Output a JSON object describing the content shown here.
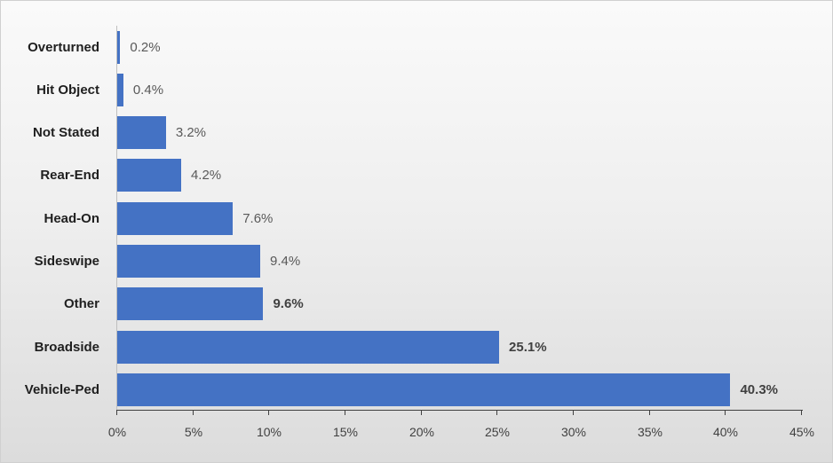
{
  "chart_data": {
    "type": "bar",
    "orientation": "horizontal",
    "title": "",
    "xlabel": "",
    "ylabel": "",
    "categories": [
      "Overturned",
      "Hit Object",
      "Not Stated",
      "Rear-End",
      "Head-On",
      "Sideswipe",
      "Other",
      "Broadside",
      "Vehicle-Ped"
    ],
    "values": [
      0.2,
      0.4,
      3.2,
      4.2,
      7.6,
      9.4,
      9.6,
      25.1,
      40.3
    ],
    "value_labels": [
      "0.2%",
      "0.4%",
      "3.2%",
      "4.2%",
      "7.6%",
      "9.4%",
      "9.6%",
      "25.1%",
      "40.3%"
    ],
    "bold_value_labels": [
      false,
      false,
      false,
      false,
      false,
      false,
      true,
      true,
      true
    ],
    "xlim": [
      0,
      45
    ],
    "x_ticks": [
      0,
      5,
      10,
      15,
      20,
      25,
      30,
      35,
      40,
      45
    ],
    "x_tick_labels": [
      "0%",
      "5%",
      "10%",
      "15%",
      "20%",
      "25%",
      "30%",
      "35%",
      "40%",
      "45%"
    ],
    "grid": false,
    "legend": null,
    "bar_color": "#4472c4"
  },
  "colors": {
    "bar": "#4472c4",
    "axis": "#404040",
    "label": "#1f1f1f",
    "value_label": "#595959"
  }
}
